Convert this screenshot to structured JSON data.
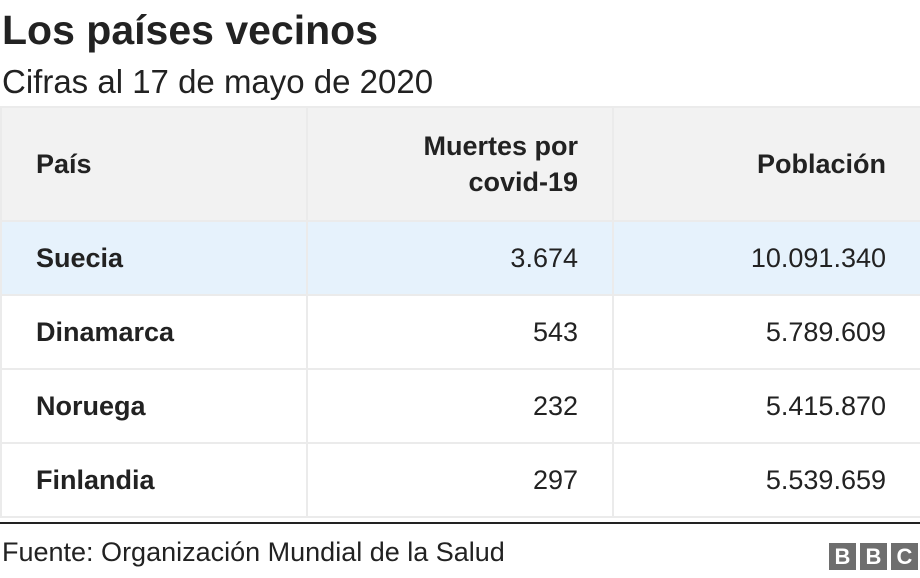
{
  "header": {
    "title": "Los países vecinos",
    "subtitle": "Cifras al 17 de mayo de 2020"
  },
  "chart_data": {
    "type": "table",
    "columns": [
      "País",
      "Muertes por covid-19",
      "Población"
    ],
    "rows": [
      {
        "country": "Suecia",
        "deaths": "3.674",
        "population": "10.091.340"
      },
      {
        "country": "Dinamarca",
        "deaths": "543",
        "population": "5.789.609"
      },
      {
        "country": "Noruega",
        "deaths": "232",
        "population": "5.415.870"
      },
      {
        "country": "Finlandia",
        "deaths": "297",
        "population": "5.539.659"
      }
    ],
    "highlighted_row": "Suecia",
    "highlight_color": "#e6f2fc",
    "header_background": "#f2f2f2"
  },
  "footer": {
    "source": "Fuente: Organización Mundial de la Salud",
    "logo_letters": [
      "B",
      "B",
      "C"
    ]
  }
}
